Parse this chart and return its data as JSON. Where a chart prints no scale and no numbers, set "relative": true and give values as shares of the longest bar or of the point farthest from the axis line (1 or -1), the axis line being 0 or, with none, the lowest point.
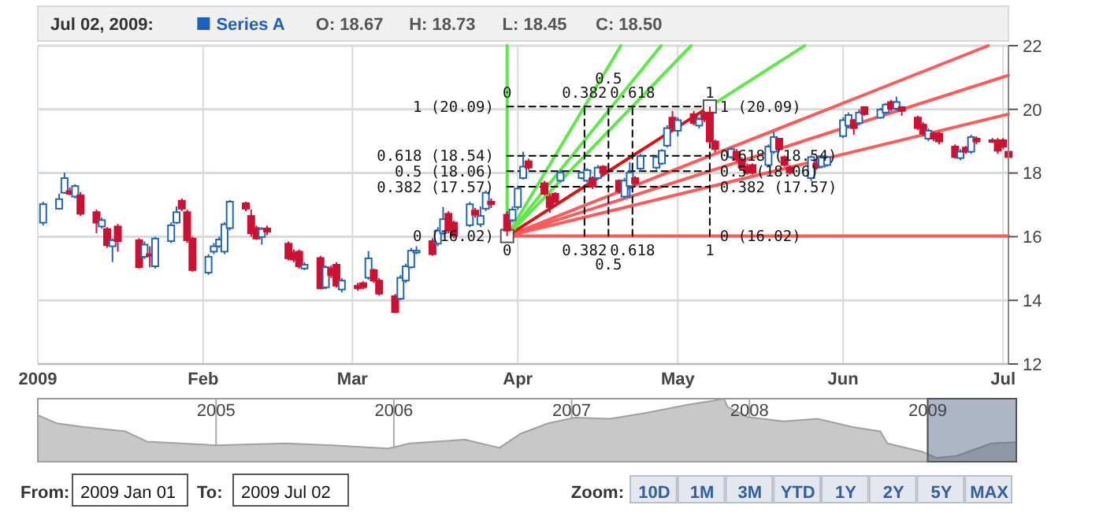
{
  "chart_data": [
    {
      "type": "candlestick",
      "title": "Jul 02, 2009:",
      "legend": "top left",
      "grid": true,
      "xlim": [
        "2009-01-01",
        "2009-07-02"
      ],
      "ylim": [
        12,
        22
      ],
      "yticks": [
        12,
        14,
        16,
        18,
        20,
        22
      ],
      "xticks": [
        {
          "value": "2009-01-01",
          "label": "2009"
        },
        {
          "value": "2009-02-01",
          "label": "Feb"
        },
        {
          "value": "2009-03-01",
          "label": "Mar"
        },
        {
          "value": "2009-04-01",
          "label": "Apr"
        },
        {
          "value": "2009-05-01",
          "label": "May"
        },
        {
          "value": "2009-06-01",
          "label": "Jun"
        },
        {
          "value": "2009-07-01",
          "label": "Jul"
        }
      ],
      "series": [
        {
          "type": "line",
          "color": "#ff5a5a",
          "x": [
            "2009-03-30",
            "2009-07-02"
          ],
          "values": [
            16.02,
            16.02
          ]
        },
        {
          "type": "line",
          "color": "#ff5a5a",
          "x": [
            "2009-03-30",
            "2009-07-02"
          ],
          "values": [
            16.02,
            19.85
          ]
        },
        {
          "type": "line",
          "color": "#ff5a5a",
          "x": [
            "2009-03-30",
            "2009-07-02"
          ],
          "values": [
            16.02,
            21.07
          ]
        },
        {
          "type": "line",
          "color": "#ff5a5a",
          "x": [
            "2009-03-30",
            "2009-06-28T05:00"
          ],
          "values": [
            16.02,
            22
          ]
        },
        {
          "type": "line",
          "color": "#e01010",
          "x": [
            "2009-03-30",
            "2009-05-07"
          ],
          "values": [
            16.02,
            20.09
          ]
        },
        {
          "type": "line",
          "color": "#5ee84a",
          "x": [
            "2009-03-30",
            "2009-03-30"
          ],
          "values": [
            16.02,
            22
          ]
        },
        {
          "type": "line",
          "color": "#5ee84a",
          "x": [
            "2009-03-30",
            "2009-04-20T08:00"
          ],
          "values": [
            16.02,
            22
          ]
        },
        {
          "type": "line",
          "color": "#5ee84a",
          "x": [
            "2009-03-30",
            "2009-04-27T21:00"
          ],
          "values": [
            16.02,
            22
          ]
        },
        {
          "type": "line",
          "color": "#5ee84a",
          "x": [
            "2009-03-30",
            "2009-05-03T12:00"
          ],
          "values": [
            16.02,
            22
          ]
        },
        {
          "type": "line",
          "color": "#5ee84a",
          "x": [
            "2009-05-07",
            "2009-05-24T19:00"
          ],
          "values": [
            20.09,
            22
          ]
        },
        {
          "type": "line",
          "color": "#000000",
          "line_style": "dashed",
          "x": [
            "2009-03-30",
            "2009-05-07"
          ],
          "values": [
            20.09,
            20.09
          ]
        },
        {
          "type": "line",
          "color": "#000000",
          "line_style": "dashed",
          "x": [
            "2009-03-30",
            "2009-05-07"
          ],
          "values": [
            18.54,
            18.54
          ]
        },
        {
          "type": "line",
          "color": "#000000",
          "line_style": "dashed",
          "x": [
            "2009-03-30",
            "2009-05-07"
          ],
          "values": [
            18.06,
            18.06
          ]
        },
        {
          "type": "line",
          "color": "#000000",
          "line_style": "dashed",
          "x": [
            "2009-03-30",
            "2009-05-07"
          ],
          "values": [
            17.57,
            17.57
          ]
        },
        {
          "type": "line",
          "color": "#000000",
          "line_style": "dashed",
          "x": [
            "2009-04-13T12:00",
            "2009-04-13T12:00"
          ],
          "values": [
            16.02,
            20.09
          ]
        },
        {
          "type": "line",
          "color": "#000000",
          "line_style": "dashed",
          "x": [
            "2009-04-18",
            "2009-04-18"
          ],
          "values": [
            16.02,
            20.09
          ]
        },
        {
          "type": "line",
          "color": "#000000",
          "line_style": "dashed",
          "x": [
            "2009-04-22T12:00",
            "2009-04-22T12:00"
          ],
          "values": [
            16.02,
            20.09
          ]
        },
        {
          "type": "line",
          "color": "#000000",
          "line_style": "dashed",
          "x": [
            "2009-05-07",
            "2009-05-07"
          ],
          "values": [
            16.02,
            20.09
          ]
        },
        {
          "type": "candlestick",
          "name": "Series A",
          "color": "#1f5fbf",
          "x": [
            "2009-01-02",
            "2009-01-05",
            "2009-01-06",
            "2009-01-07",
            "2009-01-08",
            "2009-01-09",
            "2009-01-12",
            "2009-01-13",
            "2009-01-14",
            "2009-01-15",
            "2009-01-16",
            "2009-01-20",
            "2009-01-21",
            "2009-01-22",
            "2009-01-23",
            "2009-01-26",
            "2009-01-27",
            "2009-01-28",
            "2009-01-29",
            "2009-01-30",
            "2009-02-02",
            "2009-02-03",
            "2009-02-04",
            "2009-02-05",
            "2009-02-06",
            "2009-02-09",
            "2009-02-10",
            "2009-02-11",
            "2009-02-12",
            "2009-02-13",
            "2009-02-17",
            "2009-02-18",
            "2009-02-19",
            "2009-02-20",
            "2009-02-23",
            "2009-02-24",
            "2009-02-25",
            "2009-02-26",
            "2009-02-27",
            "2009-03-02",
            "2009-03-03",
            "2009-03-04",
            "2009-03-05",
            "2009-03-06",
            "2009-03-09",
            "2009-03-10",
            "2009-03-11",
            "2009-03-12",
            "2009-03-13",
            "2009-03-16",
            "2009-03-17",
            "2009-03-18",
            "2009-03-19",
            "2009-03-20",
            "2009-03-23",
            "2009-03-24",
            "2009-03-25",
            "2009-03-26",
            "2009-03-27",
            "2009-03-30",
            "2009-03-31",
            "2009-04-01",
            "2009-04-02",
            "2009-04-03",
            "2009-04-06",
            "2009-04-07",
            "2009-04-08",
            "2009-04-09",
            "2009-04-13",
            "2009-04-14",
            "2009-04-15",
            "2009-04-16",
            "2009-04-17",
            "2009-04-20",
            "2009-04-21",
            "2009-04-22",
            "2009-04-23",
            "2009-04-24",
            "2009-04-27",
            "2009-04-28",
            "2009-04-29",
            "2009-04-30",
            "2009-05-01",
            "2009-05-04",
            "2009-05-05",
            "2009-05-06",
            "2009-05-07",
            "2009-05-08",
            "2009-05-11",
            "2009-05-12",
            "2009-05-13",
            "2009-05-14",
            "2009-05-15",
            "2009-05-18",
            "2009-05-19",
            "2009-05-20",
            "2009-05-21",
            "2009-05-22",
            "2009-05-26",
            "2009-05-27",
            "2009-05-28",
            "2009-05-29",
            "2009-06-01",
            "2009-06-02",
            "2009-06-03",
            "2009-06-04",
            "2009-06-05",
            "2009-06-08",
            "2009-06-09",
            "2009-06-10",
            "2009-06-11",
            "2009-06-12",
            "2009-06-15",
            "2009-06-16",
            "2009-06-17",
            "2009-06-18",
            "2009-06-19",
            "2009-06-22",
            "2009-06-23",
            "2009-06-24",
            "2009-06-25",
            "2009-06-26",
            "2009-06-29",
            "2009-06-30",
            "2009-07-01",
            "2009-07-02"
          ],
          "ohlc": [
            [
              16.44,
              17.1,
              16.35,
              17.02
            ],
            [
              16.88,
              17.35,
              16.85,
              17.18
            ],
            [
              17.38,
              18.01,
              17.35,
              17.84
            ],
            [
              17.43,
              17.55,
              17.3,
              17.35
            ],
            [
              17.26,
              17.65,
              17.2,
              17.59
            ],
            [
              17.3,
              17.4,
              16.65,
              16.72
            ],
            [
              16.77,
              16.85,
              16.11,
              16.44
            ],
            [
              16.32,
              16.6,
              16.25,
              16.52
            ],
            [
              16.24,
              16.3,
              15.65,
              15.73
            ],
            [
              15.7,
              15.95,
              15.2,
              15.89
            ],
            [
              16.32,
              16.4,
              15.53,
              15.86
            ],
            [
              15.89,
              15.95,
              15.0,
              15.04
            ],
            [
              15.37,
              15.85,
              15.3,
              15.75
            ],
            [
              15.45,
              15.7,
              15.04,
              15.4
            ],
            [
              15.07,
              16.0,
              15.0,
              15.94
            ],
            [
              15.86,
              16.45,
              15.8,
              16.36
            ],
            [
              16.44,
              16.95,
              16.4,
              16.77
            ],
            [
              17.13,
              17.2,
              16.8,
              16.88
            ],
            [
              16.77,
              16.85,
              15.8,
              15.89
            ],
            [
              15.94,
              16.0,
              14.9,
              14.95
            ],
            [
              14.87,
              15.45,
              14.8,
              15.37
            ],
            [
              15.53,
              15.8,
              15.45,
              15.7
            ],
            [
              15.7,
              16.0,
              15.65,
              15.91
            ],
            [
              15.53,
              16.45,
              15.45,
              16.39
            ],
            [
              16.27,
              17.15,
              16.2,
              17.1
            ],
            [
              17.05,
              17.1,
              16.8,
              16.88
            ],
            [
              16.65,
              16.85,
              16.0,
              16.11
            ],
            [
              16.27,
              16.35,
              15.9,
              15.94
            ],
            [
              15.99,
              16.3,
              15.75,
              16.24
            ],
            [
              16.26,
              16.35,
              16.05,
              16.16
            ],
            [
              15.78,
              15.85,
              15.25,
              15.32
            ],
            [
              15.5,
              15.6,
              15.2,
              15.28
            ],
            [
              15.53,
              15.6,
              15.0,
              15.07
            ],
            [
              15.0,
              15.2,
              14.95,
              15.12
            ],
            [
              15.33,
              15.4,
              14.35,
              14.38
            ],
            [
              14.41,
              15.1,
              14.35,
              15.04
            ],
            [
              15.0,
              15.1,
              14.7,
              14.79
            ],
            [
              15.12,
              15.2,
              14.4,
              14.46
            ],
            [
              14.34,
              14.7,
              14.25,
              14.62
            ],
            [
              14.46,
              14.55,
              14.3,
              14.38
            ],
            [
              14.54,
              14.6,
              14.35,
              14.41
            ],
            [
              14.71,
              15.55,
              14.65,
              15.32
            ],
            [
              14.95,
              15.0,
              14.55,
              14.62
            ],
            [
              14.62,
              14.7,
              14.15,
              14.21
            ],
            [
              14.13,
              14.2,
              13.6,
              13.63
            ],
            [
              14.05,
              14.8,
              14.0,
              14.71
            ],
            [
              14.62,
              15.15,
              14.55,
              15.07
            ],
            [
              15.04,
              15.65,
              15.0,
              15.56
            ],
            [
              15.5,
              15.7,
              15.45,
              15.56
            ],
            [
              15.86,
              15.95,
              15.4,
              15.45
            ],
            [
              15.78,
              16.3,
              15.7,
              16.19
            ],
            [
              16.11,
              16.93,
              16.05,
              16.55
            ],
            [
              16.72,
              16.8,
              16.1,
              16.19
            ],
            [
              16.44,
              16.5,
              15.95,
              16.03
            ],
            [
              16.36,
              17.1,
              16.3,
              17.02
            ],
            [
              16.82,
              16.9,
              16.6,
              16.69
            ],
            [
              16.39,
              16.95,
              16.3,
              16.65
            ],
            [
              16.88,
              17.45,
              16.8,
              17.38
            ],
            [
              17.1,
              17.2,
              16.9,
              17.02
            ],
            [
              16.69,
              16.8,
              16.02,
              16.19
            ],
            [
              16.52,
              16.95,
              16.45,
              16.85
            ],
            [
              16.93,
              17.6,
              16.85,
              17.51
            ],
            [
              17.84,
              18.67,
              17.8,
              18.2
            ],
            [
              18.37,
              18.45,
              18.1,
              18.17
            ],
            [
              17.68,
              17.75,
              17.3,
              17.35
            ],
            [
              17.26,
              17.35,
              16.75,
              16.93
            ],
            [
              17.35,
              17.4,
              17.05,
              17.1
            ],
            [
              17.76,
              18.1,
              17.7,
              18.01
            ],
            [
              17.84,
              18.05,
              17.8,
              18.01
            ],
            [
              17.76,
              18.15,
              17.7,
              18.09
            ],
            [
              17.84,
              17.9,
              17.5,
              17.59
            ],
            [
              17.84,
              18.25,
              17.8,
              18.17
            ],
            [
              18.2,
              18.25,
              17.95,
              18.01
            ],
            [
              17.76,
              17.8,
              17.35,
              17.43
            ],
            [
              17.26,
              17.85,
              17.2,
              17.76
            ],
            [
              17.59,
              18.34,
              17.21,
              18.01
            ],
            [
              17.84,
              17.9,
              17.6,
              17.68
            ],
            [
              18.14,
              18.6,
              18.05,
              18.53
            ],
            [
              18.17,
              18.55,
              18.1,
              18.5
            ],
            [
              18.3,
              18.75,
              18.25,
              18.7
            ],
            [
              18.86,
              19.5,
              18.8,
              19.41
            ],
            [
              19.74,
              19.95,
              19.35,
              19.41
            ],
            [
              19.33,
              19.75,
              19.15,
              19.66
            ],
            [
              19.85,
              19.95,
              19.5,
              19.57
            ],
            [
              19.49,
              19.75,
              19.4,
              19.69
            ],
            [
              19.85,
              19.95,
              19.6,
              19.69
            ],
            [
              19.9,
              20.09,
              18.9,
              18.99
            ],
            [
              18.99,
              19.05,
              18.65,
              18.75
            ],
            [
              18.5,
              18.8,
              18.45,
              18.75
            ],
            [
              18.67,
              18.75,
              18.35,
              18.42
            ],
            [
              18.42,
              18.5,
              18.1,
              18.17
            ],
            [
              18.2,
              18.3,
              17.95,
              18.01
            ],
            [
              18.25,
              18.3,
              17.95,
              18.01
            ],
            [
              18.25,
              18.9,
              18.2,
              18.83
            ],
            [
              18.67,
              19.3,
              18.6,
              19.13
            ],
            [
              19.08,
              19.1,
              18.7,
              18.75
            ],
            [
              18.5,
              18.55,
              18.2,
              18.25
            ],
            [
              18.17,
              18.25,
              17.95,
              18.01
            ],
            [
              17.84,
              18.55,
              17.75,
              18.5
            ],
            [
              18.3,
              18.4,
              18.1,
              18.17
            ],
            [
              18.2,
              18.6,
              18.15,
              18.53
            ],
            [
              18.25,
              18.55,
              18.2,
              18.5
            ],
            [
              19.16,
              19.75,
              19.1,
              19.66
            ],
            [
              19.49,
              19.9,
              19.4,
              19.82
            ],
            [
              19.66,
              19.7,
              19.2,
              19.41
            ],
            [
              19.57,
              20.0,
              19.5,
              19.9
            ],
            [
              20.07,
              20.1,
              19.8,
              19.85
            ],
            [
              19.74,
              20.05,
              19.7,
              19.99
            ],
            [
              19.9,
              20.2,
              19.85,
              20.15
            ],
            [
              20.23,
              20.3,
              19.95,
              20.02
            ],
            [
              20.02,
              20.4,
              19.95,
              20.23
            ],
            [
              20.07,
              20.1,
              19.8,
              19.95
            ],
            [
              19.74,
              19.8,
              19.35,
              19.41
            ],
            [
              19.52,
              19.6,
              19.15,
              19.24
            ],
            [
              19.08,
              19.4,
              19.0,
              19.33
            ],
            [
              19.24,
              19.3,
              19.0,
              19.08
            ],
            [
              19.24,
              19.3,
              18.9,
              18.99
            ],
            [
              18.83,
              18.9,
              18.45,
              18.5
            ],
            [
              18.47,
              18.75,
              18.4,
              18.67
            ],
            [
              18.8,
              18.85,
              18.6,
              18.67
            ],
            [
              18.67,
              19.2,
              18.6,
              19.13
            ],
            [
              19.08,
              19.15,
              18.9,
              18.99
            ],
            [
              19.03,
              19.1,
              18.95,
              18.99
            ],
            [
              19.03,
              19.1,
              18.6,
              18.7
            ],
            [
              19.03,
              19.1,
              18.75,
              18.83
            ],
            [
              18.67,
              18.73,
              18.45,
              18.5
            ]
          ],
          "colors": [
            "#2266bb",
            "#2266bb",
            "#2266bb",
            "#cc1133",
            "#2266bb",
            "#cc1133",
            "#cc1133",
            "#2266bb",
            "#cc1133",
            "#2266bb",
            "#cc1133",
            "#cc1133",
            "#2266bb",
            "#cc1133",
            "#2266bb",
            "#2266bb",
            "#2266bb",
            "#cc1133",
            "#cc1133",
            "#cc1133",
            "#2266bb",
            "#2266bb",
            "#2266bb",
            "#2266bb",
            "#2266bb",
            "#cc1133",
            "#cc1133",
            "#cc1133",
            "#2266bb",
            "#cc1133",
            "#cc1133",
            "#cc1133",
            "#cc1133",
            "#2266bb",
            "#cc1133",
            "#2266bb",
            "#cc1133",
            "#cc1133",
            "#2266bb",
            "#cc1133",
            "#cc1133",
            "#2266bb",
            "#cc1133",
            "#cc1133",
            "#cc1133",
            "#2266bb",
            "#2266bb",
            "#2266bb",
            "#2266bb",
            "#cc1133",
            "#2266bb",
            "#2266bb",
            "#cc1133",
            "#cc1133",
            "#2266bb",
            "#cc1133",
            "#2266bb",
            "#2266bb",
            "#cc1133",
            "#cc1133",
            "#2266bb",
            "#2266bb",
            "#2266bb",
            "#cc1133",
            "#cc1133",
            "#cc1133",
            "#cc1133",
            "#2266bb",
            "#2266bb",
            "#2266bb",
            "#cc1133",
            "#2266bb",
            "#cc1133",
            "#cc1133",
            "#2266bb",
            "#2266bb",
            "#cc1133",
            "#2266bb",
            "#2266bb",
            "#2266bb",
            "#2266bb",
            "#cc1133",
            "#2266bb",
            "#cc1133",
            "#2266bb",
            "#cc1133",
            "#cc1133",
            "#cc1133",
            "#2266bb",
            "#cc1133",
            "#cc1133",
            "#cc1133",
            "#cc1133",
            "#2266bb",
            "#2266bb",
            "#cc1133",
            "#cc1133",
            "#cc1133",
            "#2266bb",
            "#cc1133",
            "#2266bb",
            "#2266bb",
            "#2266bb",
            "#2266bb",
            "#cc1133",
            "#2266bb",
            "#cc1133",
            "#2266bb",
            "#2266bb",
            "#cc1133",
            "#2266bb",
            "#cc1133",
            "#cc1133",
            "#cc1133",
            "#2266bb",
            "#cc1133",
            "#cc1133",
            "#cc1133",
            "#2266bb",
            "#cc1133",
            "#2266bb",
            "#cc1133",
            "#cc1133",
            "#cc1133",
            "#cc1133",
            "#cc1133"
          ]
        },
        {
          "type": "scatter",
          "marker": "square",
          "color": "#ffffff",
          "x": [
            "2009-03-30",
            "2009-05-07"
          ],
          "values": [
            16.02,
            20.09
          ]
        }
      ],
      "annotations": [
        "O: 18.67",
        "H: 18.73",
        "L: 18.45",
        "C: 18.50",
        {
          "text": "1 (20.09)",
          "x": "2009-03-29",
          "y": 20.09
        },
        {
          "text": "0.618 (18.54)",
          "x": "2009-03-29",
          "y": 18.54
        },
        {
          "text": "0.5 (18.06)",
          "x": "2009-03-29",
          "y": 18.06
        },
        {
          "text": "0.382 (17.57)",
          "x": "2009-03-29",
          "y": 17.57
        },
        {
          "text": "0 (16.02)",
          "x": "2009-03-29",
          "y": 16.02
        },
        {
          "text": "1 (20.09)",
          "x": "2009-05-08",
          "y": 20.09
        },
        {
          "text": "0.618 (18.54)",
          "x": "2009-05-08",
          "y": 18.54
        },
        {
          "text": "0.5 (18.06)",
          "x": "2009-05-08",
          "y": 18.06
        },
        {
          "text": "0.382 (17.57)",
          "x": "2009-05-08",
          "y": 17.57
        },
        {
          "text": "0 (16.02)",
          "x": "2009-05-08",
          "y": 16.02
        },
        {
          "text": "0",
          "x": "2009-03-30",
          "y": 20.09
        },
        {
          "text": "0.382",
          "x": "2009-04-13T12:00",
          "y": 20.09
        },
        {
          "text": "0.5",
          "x": "2009-04-18",
          "y": 20.09
        },
        {
          "text": "0.618",
          "x": "2009-04-22T12:00",
          "y": 20.09
        },
        {
          "text": "1",
          "x": "2009-05-07",
          "y": 20.09
        },
        {
          "text": "0",
          "x": "2009-03-30",
          "y": 16.02
        },
        {
          "text": "0.382",
          "x": "2009-04-13T12:00",
          "y": 16.02
        },
        {
          "text": "0.5",
          "x": "2009-04-18",
          "y": 16.02
        },
        {
          "text": "0.618",
          "x": "2009-04-22T12:00",
          "y": 16.02
        },
        {
          "text": "1",
          "x": "2009-05-07",
          "y": 16.02
        }
      ]
    },
    {
      "type": "area",
      "relative": true,
      "grid": "x",
      "xlim": [
        "2004-01-01",
        "2009-07-02"
      ],
      "xticks": [
        {
          "value": "2005-01-01",
          "label": "2005"
        },
        {
          "value": "2006-01-01",
          "label": "2006"
        },
        {
          "value": "2007-01-01",
          "label": "2007"
        },
        {
          "value": "2008-01-01",
          "label": "2008"
        },
        {
          "value": "2009-01-01",
          "label": "2009"
        }
      ],
      "bands": [
        {
          "axis": "x",
          "from": "2009-01-01",
          "to": "2009-07-02",
          "color": "#4a5a80"
        }
      ],
      "series": [
        {
          "color": "#c8c8c8",
          "x": [
            "2004-01-01",
            "2004-02-08",
            "2004-04-05",
            "2004-06-29",
            "2004-08-12",
            "2004-10-22",
            "2005-01-01",
            "2005-05-22",
            "2005-08-28",
            "2005-12-20",
            "2006-02-03",
            "2006-05-27",
            "2006-08-06",
            "2006-09-17",
            "2006-11-14",
            "2007-01-08",
            "2007-03-21",
            "2007-05-30",
            "2007-08-25",
            "2007-10-20",
            "2007-11-10",
            "2007-11-17",
            "2007-12-28",
            "2008-03-11",
            "2008-05-21",
            "2008-07-31",
            "2008-09-26",
            "2008-10-10",
            "2008-12-20",
            "2009-01-19",
            "2009-03-01",
            "2009-05-12",
            "2009-07-02"
          ],
          "values": [
            0.74,
            0.61,
            0.55,
            0.48,
            0.32,
            0.29,
            0.26,
            0.29,
            0.26,
            0.21,
            0.29,
            0.35,
            0.22,
            0.44,
            0.61,
            0.7,
            0.68,
            0.77,
            0.9,
            0.97,
            1,
            0.87,
            0.71,
            0.64,
            0.68,
            0.55,
            0.48,
            0.29,
            0.16,
            0.06,
            0.09,
            0.29,
            0.31
          ]
        }
      ]
    },
    {
      "type": "other",
      "annotations": [
        "From:",
        "2009 Jan 01",
        "To:",
        "2009 Jul 02",
        "Zoom:",
        "10D",
        "1M",
        "3M",
        "YTD",
        "1Y",
        "2Y",
        "5Y",
        "MAX"
      ]
    }
  ]
}
